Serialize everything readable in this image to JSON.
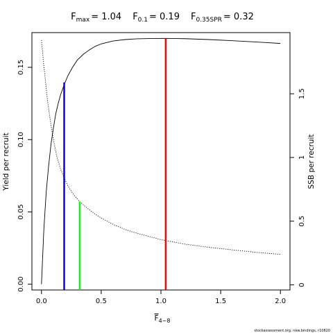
{
  "chart_data": {
    "type": "line",
    "title": {
      "fmax": {
        "base": "F",
        "sub": "max",
        "value": "= 1.04"
      },
      "f01": {
        "base": "F",
        "sub": "0.1",
        "value": "= 0.19"
      },
      "f035": {
        "base": "F",
        "sub": "0.35SPR",
        "value": "= 0.32"
      }
    },
    "xlabel": {
      "base": "F",
      "sub": "4−8"
    },
    "ylabel_left": "Yield per recruit",
    "ylabel_right": "SSB per recruit",
    "xlim": [
      -0.08,
      2.08
    ],
    "ylim_left": [
      -0.004,
      0.174
    ],
    "ylim_right": [
      -0.04,
      1.98
    ],
    "x_ticks": [
      0,
      0.5,
      1,
      1.5,
      2
    ],
    "x_tick_labels": [
      "0.0",
      "0.5",
      "1.0",
      "1.5",
      "2.0"
    ],
    "y_left_ticks": [
      0,
      0.05,
      0.1,
      0.15
    ],
    "y_left_tick_labels": [
      "0.00",
      "0.05",
      "0.10",
      "0.15"
    ],
    "y_right_ticks": [
      0,
      0.5,
      1,
      1.5
    ],
    "y_right_tick_labels": [
      "0",
      "0.5",
      "1",
      "1.5"
    ],
    "grid": false,
    "series": [
      {
        "axis": "left",
        "style": "solid",
        "color": "#000000",
        "x": [
          0,
          0.02,
          0.04,
          0.06,
          0.08,
          0.1,
          0.12,
          0.14,
          0.16,
          0.19,
          0.22,
          0.26,
          0.3,
          0.35,
          0.4,
          0.45,
          0.5,
          0.6,
          0.7,
          0.8,
          0.9,
          1.04,
          1.2,
          1.4,
          1.6,
          1.8,
          2.0
        ],
        "y": [
          0,
          0.038,
          0.064,
          0.082,
          0.097,
          0.108,
          0.118,
          0.125,
          0.131,
          0.138,
          0.144,
          0.15,
          0.155,
          0.159,
          0.162,
          0.1645,
          0.1662,
          0.1682,
          0.1692,
          0.1697,
          0.1699,
          0.17,
          0.1698,
          0.1692,
          0.1684,
          0.1675,
          0.1665
        ]
      },
      {
        "axis": "right",
        "style": "dotted",
        "color": "#000000",
        "x": [
          0,
          0.02,
          0.05,
          0.08,
          0.1,
          0.13,
          0.16,
          0.19,
          0.22,
          0.26,
          0.3,
          0.32,
          0.36,
          0.4,
          0.45,
          0.5,
          0.6,
          0.7,
          0.8,
          0.9,
          1.0,
          1.2,
          1.4,
          1.6,
          1.8,
          2.0
        ],
        "y": [
          1.92,
          1.72,
          1.45,
          1.25,
          1.14,
          1.0,
          0.91,
          0.84,
          0.78,
          0.72,
          0.675,
          0.655,
          0.62,
          0.59,
          0.555,
          0.525,
          0.475,
          0.435,
          0.405,
          0.38,
          0.355,
          0.32,
          0.295,
          0.275,
          0.255,
          0.24
        ]
      }
    ],
    "reference_lines": [
      {
        "name": "F0.1",
        "x": 0.19,
        "y_top": 0.1395,
        "axis": "left",
        "color": "#0000ff"
      },
      {
        "name": "F0.35SPR",
        "x": 0.32,
        "y_top": 0.655,
        "axis": "right",
        "color": "#00ff00"
      },
      {
        "name": "Fmax",
        "x": 1.04,
        "y_top": 0.17,
        "axis": "left",
        "color": "#ff0000"
      }
    ]
  },
  "footer": "stockassessment.org, new.bindings, r10820"
}
